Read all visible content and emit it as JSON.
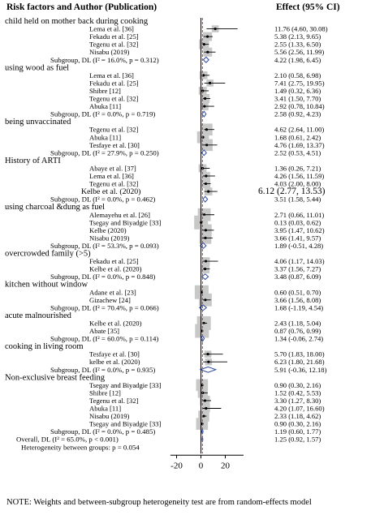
{
  "header": {
    "left": "Risk factors and Author (Publication)",
    "right": "Effect (95% CI)"
  },
  "footnote": "NOTE: Weights and between-subgroup heterogeneity test are from random-effects model",
  "chart_data": {
    "type": "forest",
    "x_ticks": [
      "-20",
      "0",
      "20"
    ],
    "xlim": [
      -25,
      35
    ],
    "null_line": 0,
    "overall_line": 1.25,
    "rows": [
      {
        "kind": "group",
        "label": "child held on mother back during cooking"
      },
      {
        "kind": "study",
        "label": "Lema et al. [36]",
        "est": 11.76,
        "lo": 4.6,
        "hi": 30.08,
        "text": "11.76 (4.60, 30.08)",
        "w": 0.3
      },
      {
        "kind": "study",
        "label": "Fekadu et al. [25]",
        "est": 5.38,
        "lo": 2.13,
        "hi": 9.65,
        "text": "5.38 (2.13, 9.65)",
        "w": 0.5
      },
      {
        "kind": "study",
        "label": "Tegenu et al. [32]",
        "est": 2.55,
        "lo": 1.33,
        "hi": 6.5,
        "text": "2.55 (1.33, 6.50)",
        "w": 0.6
      },
      {
        "kind": "study",
        "label": "Nisabu (2019)",
        "est": 5.56,
        "lo": 2.56,
        "hi": 11.99,
        "text": "5.56 (2.56, 11.99)",
        "w": 0.5
      },
      {
        "kind": "subtotal",
        "label": "Subgroup, DL (I² = 16.0%, p = 0.312)",
        "est": 4.22,
        "lo": 1.98,
        "hi": 6.45,
        "text": "4.22 (1.98, 6.45)"
      },
      {
        "kind": "group",
        "label": "using wood as fuel"
      },
      {
        "kind": "study",
        "label": "Lema et al. [36]",
        "est": 2.1,
        "lo": 0.58,
        "hi": 6.98,
        "text": "2.10 (0.58, 6.98)",
        "w": 0.4
      },
      {
        "kind": "study",
        "label": "Fekadu et al. [25]",
        "est": 7.41,
        "lo": 2.75,
        "hi": 19.95,
        "text": "7.41 (2.75, 19.95)",
        "w": 0.3
      },
      {
        "kind": "study",
        "label": "Shibre [12]",
        "est": 1.49,
        "lo": 0.32,
        "hi": 6.36,
        "text": "1.49 (0.32, 6.36)",
        "w": 0.4
      },
      {
        "kind": "study",
        "label": "Tegenu et al. [32]",
        "est": 3.41,
        "lo": 1.5,
        "hi": 7.7,
        "text": "3.41 (1.50, 7.70)",
        "w": 0.5
      },
      {
        "kind": "study",
        "label": "Abuka [11]",
        "est": 2.92,
        "lo": 0.78,
        "hi": 10.84,
        "text": "2.92 (0.78, 10.84)",
        "w": 0.4
      },
      {
        "kind": "subtotal",
        "label": "Subgroup, DL (I² = 0.0%, p = 0.719)",
        "est": 2.58,
        "lo": 0.92,
        "hi": 4.23,
        "text": "2.58 (0.92, 4.23)"
      },
      {
        "kind": "group",
        "label": "being unvaccinated"
      },
      {
        "kind": "study",
        "label": "Tegenu et al. [32]",
        "est": 4.62,
        "lo": 2.64,
        "hi": 11.0,
        "text": "4.62 (2.64, 11.00)",
        "w": 0.8
      },
      {
        "kind": "study",
        "label": "Abuka [11]",
        "est": 1.68,
        "lo": 0.61,
        "hi": 2.42,
        "text": "1.68 (0.61, 2.42)",
        "w": 0.8
      },
      {
        "kind": "study",
        "label": "Tesfaye et al. [30]",
        "est": 4.76,
        "lo": 1.69,
        "hi": 13.37,
        "text": "4.76 (1.69, 13.37)",
        "w": 0.8
      },
      {
        "kind": "subtotal",
        "label": "Subgroup, DL (I² = 27.9%, p = 0.250)",
        "est": 2.52,
        "lo": 0.53,
        "hi": 4.51,
        "text": "2.52 (0.53, 4.51)"
      },
      {
        "kind": "group",
        "label": "History of ARTI"
      },
      {
        "kind": "study",
        "label": "Abaye et al. [37]",
        "est": 1.36,
        "lo": 0.26,
        "hi": 7.21,
        "text": "1.36 (0.26, 7.21)",
        "w": 0.4
      },
      {
        "kind": "study",
        "label": "Lema et al. [36]",
        "est": 4.26,
        "lo": 1.56,
        "hi": 11.59,
        "text": "4.26 (1.56, 11.59)",
        "w": 0.4
      },
      {
        "kind": "study",
        "label": "Tegenu et al. [32]",
        "est": 4.03,
        "lo": 2.0,
        "hi": 8.0,
        "text": "4.03 (2.00, 8.00)",
        "w": 0.5
      },
      {
        "kind": "study",
        "label": "Kelbe et al. (2020)",
        "est": 6.12,
        "lo": 2.77,
        "hi": 13.53,
        "text": "6.12 (2.77, 13.53)",
        "w": 0.4,
        "big": true
      },
      {
        "kind": "subtotal",
        "label": "Subgroup, DL (I² = 0.0%, p = 0.462)",
        "est": 3.51,
        "lo": 1.58,
        "hi": 5.44,
        "text": "3.51 (1.58, 5.44)"
      },
      {
        "kind": "group",
        "label": "using charcoal &dung as fuel"
      },
      {
        "kind": "study",
        "label": "Alemayehu et al. [26]",
        "est": 2.71,
        "lo": 0.66,
        "hi": 11.01,
        "text": "2.71 (0.66, 11.01)",
        "w": 0.9
      },
      {
        "kind": "study",
        "label": "Tsegay and Biyadgie [33]",
        "est": 0.13,
        "lo": 0.03,
        "hi": 0.62,
        "text": "0.13 (0.03, 0.62)",
        "w": 1.0
      },
      {
        "kind": "study",
        "label": "Kelbe (2020)",
        "est": 3.95,
        "lo": 1.47,
        "hi": 10.62,
        "text": "3.95 (1.47, 10.62)",
        "w": 0.8
      },
      {
        "kind": "study",
        "label": "Nisabu (2019)",
        "est": 3.66,
        "lo": 1.41,
        "hi": 9.57,
        "text": "3.66 (1.41, 9.57)",
        "w": 0.8
      },
      {
        "kind": "subtotal",
        "label": "Subgroup, DL (I² = 53.3%, p = 0.093)",
        "est": 1.89,
        "lo": -0.51,
        "hi": 4.28,
        "text": "1.89 (-0.51, 4.28)"
      },
      {
        "kind": "group",
        "label": "overcrowded family (>5)"
      },
      {
        "kind": "study",
        "label": "Fekadu et al. [25]",
        "est": 4.06,
        "lo": 1.17,
        "hi": 14.03,
        "text": "4.06 (1.17, 14.03)",
        "w": 0.4
      },
      {
        "kind": "study",
        "label": "Kelbe et al. (2020)",
        "est": 3.37,
        "lo": 1.56,
        "hi": 7.27,
        "text": "3.37 (1.56, 7.27)",
        "w": 0.5
      },
      {
        "kind": "subtotal",
        "label": "Subgroup, DL (I² = 0.0%, p = 0.848)",
        "est": 3.48,
        "lo": 0.87,
        "hi": 6.09,
        "text": "3.48 (0.87, 6.09)"
      },
      {
        "kind": "group",
        "label": "kitchen without window"
      },
      {
        "kind": "study",
        "label": "Adane et al. [23]",
        "est": 0.6,
        "lo": 0.51,
        "hi": 0.7,
        "text": "0.60 (0.51, 0.70)",
        "w": 1.0
      },
      {
        "kind": "study",
        "label": "Gizachew [24]",
        "est": 3.66,
        "lo": 1.56,
        "hi": 8.08,
        "text": "3.66 (1.56, 8.08)",
        "w": 0.9
      },
      {
        "kind": "subtotal",
        "label": "Subgroup, DL (I² = 70.4%, p = 0.066)",
        "est": 1.68,
        "lo": -1.19,
        "hi": 4.54,
        "text": "1.68 (-1.19, 4.54)"
      },
      {
        "kind": "group",
        "label": "acute malnourished"
      },
      {
        "kind": "study",
        "label": "Kelbe et al. (2020)",
        "est": 2.43,
        "lo": 1.18,
        "hi": 5.04,
        "text": "2.43 (1.18, 5.04)",
        "w": 1.0
      },
      {
        "kind": "study",
        "label": "Abate [35]",
        "est": 0.87,
        "lo": 0.76,
        "hi": 0.99,
        "text": "0.87 (0.76, 0.99)",
        "w": 1.0
      },
      {
        "kind": "subtotal",
        "label": "Subgroup, DL (I² = 60.0%, p = 0.114)",
        "est": 1.34,
        "lo": -0.06,
        "hi": 2.74,
        "text": "1.34 (-0.06, 2.74)"
      },
      {
        "kind": "group",
        "label": "cooking in living room"
      },
      {
        "kind": "study",
        "label": "Tesfaye et al. [30]",
        "est": 5.7,
        "lo": 1.83,
        "hi": 18.0,
        "text": "5.70 (1.83, 18.00)",
        "w": 0.3
      },
      {
        "kind": "study",
        "label": "kelbe et al. (2020)",
        "est": 6.23,
        "lo": 1.8,
        "hi": 21.68,
        "text": "6.23 (1.80, 21.68)",
        "w": 0.3
      },
      {
        "kind": "subtotal",
        "label": "Subgroup, DL (I² = 0.0%, p = 0.935)",
        "est": 5.91,
        "lo": -0.36,
        "hi": 12.18,
        "text": "5.91 (-0.36, 12.18)"
      },
      {
        "kind": "group",
        "label": "Non-exclusive breast feeding"
      },
      {
        "kind": "study",
        "label": "Tsegay and Biyadgie [33]",
        "est": 0.9,
        "lo": 0.3,
        "hi": 2.16,
        "text": "0.90 (0.30, 2.16)",
        "w": 0.8
      },
      {
        "kind": "study",
        "label": "Shibre [12]",
        "est": 1.52,
        "lo": 0.42,
        "hi": 5.53,
        "text": "1.52 (0.42, 5.53)",
        "w": 0.6
      },
      {
        "kind": "study",
        "label": "Tegenu et al. [32]",
        "est": 3.3,
        "lo": 1.27,
        "hi": 8.3,
        "text": "3.30 (1.27, 8.30)",
        "w": 0.6
      },
      {
        "kind": "study",
        "label": "Abuka [11]",
        "est": 4.2,
        "lo": 1.07,
        "hi": 16.6,
        "text": "4.20 (1.07, 16.60)",
        "w": 0.4
      },
      {
        "kind": "study",
        "label": "Nisabu (2019)",
        "est": 2.33,
        "lo": 1.18,
        "hi": 4.62,
        "text": "2.33 (1.18, 4.62)",
        "w": 0.7
      },
      {
        "kind": "study",
        "label": "Tsegay and Biyadgie [33]",
        "est": 0.9,
        "lo": 0.3,
        "hi": 2.16,
        "text": "0.90 (0.30, 2.16)",
        "w": 0.8
      },
      {
        "kind": "subtotal",
        "label": "Subgroup, DL (I² = 0.0%, p = 0.485)",
        "est": 1.19,
        "lo": 0.6,
        "hi": 1.77,
        "text": "1.19 (0.60, 1.77)"
      },
      {
        "kind": "overall",
        "label": "Overall, DL (I² = 65.0%, p < 0.001)",
        "est": 1.25,
        "lo": 0.92,
        "hi": 1.57,
        "text": "1.25 (0.92, 1.57)"
      },
      {
        "kind": "note",
        "label": "Heterogeneity between groups: p = 0.054"
      }
    ]
  }
}
